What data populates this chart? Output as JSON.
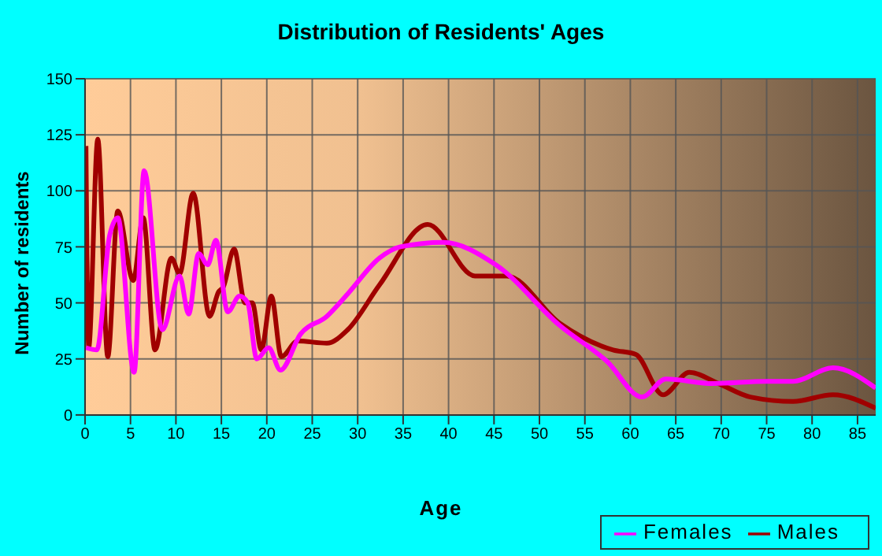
{
  "chart_data": {
    "type": "line",
    "title": "Distribution of Residents' Ages",
    "xlabel": "Age",
    "ylabel": "Number of residents",
    "xlim": [
      0,
      87
    ],
    "xticks": [
      0,
      5,
      10,
      15,
      20,
      25,
      30,
      35,
      40,
      45,
      50,
      55,
      60,
      65,
      70,
      75,
      80,
      85
    ],
    "ylim": [
      0,
      150
    ],
    "yticks": [
      0,
      25,
      50,
      75,
      100,
      125,
      150
    ],
    "grid": true,
    "legend": "bottom right",
    "marker": "none",
    "line_style": "solid",
    "series": [
      {
        "name": "Males",
        "color": "#a00000",
        "x": [
          0.1,
          0.4,
          1.4,
          2.5,
          3.6,
          5.3,
          6.4,
          7.7,
          9.5,
          10.4,
          11.9,
          13.7,
          14.7,
          15.2,
          16.4,
          17.6,
          18.4,
          19.4,
          20.5,
          21.6,
          23.4,
          26.6,
          28.9,
          32.4,
          37.7,
          42.9,
          46.4,
          52.2,
          58.1,
          60.6,
          63.6,
          66.5,
          69.7,
          73.2,
          77.9,
          82.3,
          87
        ],
        "values": [
          120,
          30,
          123,
          26,
          91,
          60,
          88,
          29,
          70,
          63,
          99,
          44,
          55,
          57,
          74,
          50,
          50,
          29,
          53,
          26,
          33,
          32,
          38,
          58,
          85,
          62,
          62,
          41,
          29,
          27,
          9,
          19,
          14,
          8,
          6,
          9,
          3
        ]
      },
      {
        "name": "Females",
        "color": "#ff00ff",
        "x": [
          0.1,
          1.3,
          2.7,
          3.6,
          5.4,
          6.5,
          8.5,
          10.4,
          11.4,
          12.5,
          13.5,
          14.4,
          15.7,
          17,
          17.9,
          18.9,
          20.2,
          21.5,
          23.7,
          26.6,
          28.9,
          32.4,
          34.7,
          39.4,
          45.2,
          52.2,
          57.4,
          61.3,
          63.9,
          69.1,
          75,
          77.9,
          82.3,
          87
        ],
        "values": [
          30,
          29,
          80,
          88,
          19,
          109,
          38,
          62,
          45,
          72,
          67,
          78,
          46,
          53,
          50,
          25,
          30,
          20,
          36,
          44,
          54,
          70,
          75,
          77,
          67,
          40,
          24,
          8,
          16,
          14,
          15,
          15,
          21,
          12
        ]
      }
    ]
  }
}
